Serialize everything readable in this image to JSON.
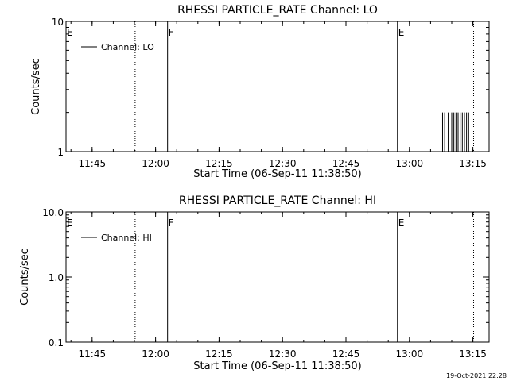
{
  "footer_timestamp": "19-Oct-2021 22:28",
  "chart_data": [
    {
      "type": "line",
      "title": "RHESSI PARTICLE_RATE Channel: LO",
      "xlabel": "Start Time (06-Sep-11 11:38:50)",
      "ylabel": "Counts/sec",
      "yscale": "log",
      "ylim": [
        1,
        10
      ],
      "xlim": [
        "11:38:50",
        "13:18:50"
      ],
      "x_ticks": [
        "11:45",
        "12:00",
        "12:15",
        "12:30",
        "12:45",
        "13:00",
        "13:15"
      ],
      "y_ticks": [
        "1",
        "10"
      ],
      "legend": {
        "labels": [
          "Channel: LO"
        ],
        "position": "top-left"
      },
      "event_markers": [
        {
          "time": "11:38:50",
          "label": "E",
          "style": "solid"
        },
        {
          "time": "11:55:10",
          "label": "",
          "style": "dotted"
        },
        {
          "time": "12:02:50",
          "label": "F",
          "style": "solid"
        },
        {
          "time": "12:57:10",
          "label": "E",
          "style": "solid"
        },
        {
          "time": "13:15:10",
          "label": "",
          "style": "dotted"
        }
      ],
      "series": [
        {
          "name": "Channel: LO",
          "x": [
            "13:07:50",
            "13:08:20",
            "13:09:10",
            "13:10:00",
            "13:10:30",
            "13:11:00",
            "13:11:30",
            "13:12:00",
            "13:12:30",
            "13:13:00",
            "13:13:30",
            "13:14:00"
          ],
          "y": [
            2,
            2,
            2,
            2,
            2,
            2,
            2,
            2,
            2,
            2,
            2,
            2
          ]
        }
      ]
    },
    {
      "type": "line",
      "title": "RHESSI PARTICLE_RATE Channel: HI",
      "xlabel": "Start Time (06-Sep-11 11:38:50)",
      "ylabel": "Counts/sec",
      "yscale": "log",
      "ylim": [
        0.1,
        10
      ],
      "xlim": [
        "11:38:50",
        "13:18:50"
      ],
      "x_ticks": [
        "11:45",
        "12:00",
        "12:15",
        "12:30",
        "12:45",
        "13:00",
        "13:15"
      ],
      "y_ticks": [
        "0.1",
        "1.0",
        "10.0"
      ],
      "legend": {
        "labels": [
          "Channel: HI"
        ],
        "position": "top-left"
      },
      "event_markers": [
        {
          "time": "11:38:50",
          "label": "E",
          "style": "solid"
        },
        {
          "time": "11:55:10",
          "label": "",
          "style": "dotted"
        },
        {
          "time": "12:02:50",
          "label": "F",
          "style": "solid"
        },
        {
          "time": "12:57:10",
          "label": "E",
          "style": "solid"
        },
        {
          "time": "13:15:10",
          "label": "",
          "style": "dotted"
        }
      ],
      "series": [
        {
          "name": "Channel: HI",
          "x": [],
          "y": []
        }
      ]
    }
  ]
}
